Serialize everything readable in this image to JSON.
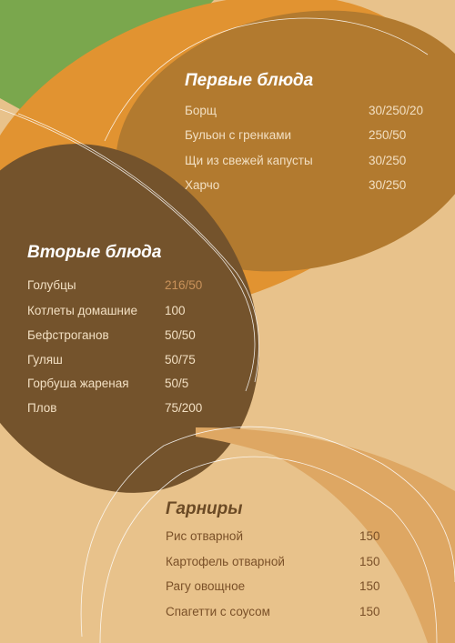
{
  "colors": {
    "background": "#e8c28b",
    "green": "#7aa74d",
    "orange": "#e19331",
    "first_ellipse": "#b27a2f",
    "second_ellipse": "#74532c",
    "bottom_band": "#dea763",
    "title_dark": "#6b4a25"
  },
  "sections": {
    "first": {
      "title": "Первые блюда",
      "items": [
        {
          "name": "Борщ",
          "portion": "30/250/20"
        },
        {
          "name": "Бульон с гренками",
          "portion": "250/50"
        },
        {
          "name": "Щи из свежей капусты",
          "portion": "30/250"
        },
        {
          "name": "Харчо",
          "portion": "30/250"
        }
      ]
    },
    "second": {
      "title": "Вторые блюда",
      "items": [
        {
          "name": "Голубцы",
          "portion": "216/50"
        },
        {
          "name": "Котлеты домашние",
          "portion": "100"
        },
        {
          "name": "Бефстроганов",
          "portion": "50/50"
        },
        {
          "name": "Гуляш",
          "portion": "50/75"
        },
        {
          "name": "Горбуша жареная",
          "portion": "50/5"
        },
        {
          "name": "Плов",
          "portion": "75/200"
        }
      ]
    },
    "sides": {
      "title": "Гарниры",
      "items": [
        {
          "name": "Рис отварной",
          "portion": "150"
        },
        {
          "name": "Картофель отварной",
          "portion": "150"
        },
        {
          "name": "Рагу овощное",
          "portion": "150"
        },
        {
          "name": "Спагетти с соусом",
          "portion": "150"
        }
      ]
    }
  }
}
